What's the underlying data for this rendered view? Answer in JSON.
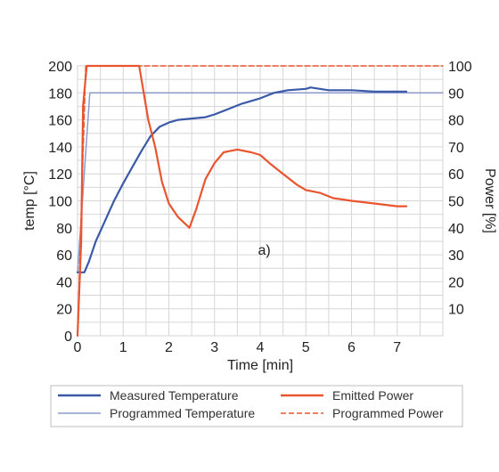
{
  "chart_data": {
    "type": "line",
    "xlabel": "Time [min]",
    "ylabel_left": "temp [°C]",
    "ylabel_right": "Power [%]",
    "xlim": [
      0,
      8
    ],
    "ylim_left": [
      0,
      200
    ],
    "ylim_right": [
      0,
      100
    ],
    "x_ticks": [
      0,
      1,
      2,
      3,
      4,
      5,
      6,
      7
    ],
    "y_left_ticks": [
      0,
      20,
      40,
      60,
      80,
      100,
      120,
      140,
      160,
      180,
      200
    ],
    "y_right_ticks": [
      10,
      20,
      30,
      40,
      50,
      60,
      70,
      80,
      90,
      100
    ],
    "grid": true,
    "annotation": "a)",
    "legend_position": "bottom",
    "series": [
      {
        "name": "Measured Temperature",
        "axis": "left",
        "color": "#3a5aa8",
        "style": "solid",
        "x": [
          0,
          0.15,
          0.25,
          0.4,
          0.6,
          0.8,
          1.0,
          1.2,
          1.4,
          1.6,
          1.8,
          2.0,
          2.2,
          2.5,
          2.8,
          3.0,
          3.3,
          3.6,
          4.0,
          4.3,
          4.6,
          5.0,
          5.1,
          5.5,
          6.0,
          6.5,
          7.0,
          7.2
        ],
        "y": [
          47,
          47,
          55,
          70,
          85,
          100,
          113,
          125,
          137,
          148,
          155,
          158,
          160,
          161,
          162,
          164,
          168,
          172,
          176,
          180,
          182,
          183,
          184,
          182,
          182,
          181,
          181,
          181
        ]
      },
      {
        "name": "Programmed Temperature",
        "axis": "left",
        "color": "#8c9bc9",
        "style": "solid",
        "x": [
          0,
          0.27,
          8
        ],
        "y": [
          47,
          180,
          180
        ]
      },
      {
        "name": "Emitted Power",
        "axis": "right",
        "color": "#e8552f",
        "style": "solid",
        "x": [
          0,
          0.08,
          0.12,
          0.2,
          0.4,
          0.8,
          1.2,
          1.35,
          1.45,
          1.55,
          1.7,
          1.85,
          2.0,
          2.2,
          2.45,
          2.6,
          2.8,
          3.0,
          3.2,
          3.5,
          3.8,
          4.0,
          4.2,
          4.5,
          4.8,
          5.0,
          5.3,
          5.6,
          6.0,
          6.5,
          7.0,
          7.2
        ],
        "y": [
          0,
          35,
          85,
          100,
          100,
          100,
          100,
          100,
          90,
          80,
          70,
          57,
          49,
          44,
          40,
          47,
          58,
          64,
          68,
          69,
          68,
          67,
          64,
          60,
          56,
          54,
          53,
          51,
          50,
          49,
          48,
          48
        ]
      },
      {
        "name": "Programmed Power",
        "axis": "right",
        "color": "#e8552f",
        "style": "dashed",
        "x": [
          0,
          0.18,
          8
        ],
        "y": [
          0,
          100,
          100
        ]
      }
    ]
  }
}
